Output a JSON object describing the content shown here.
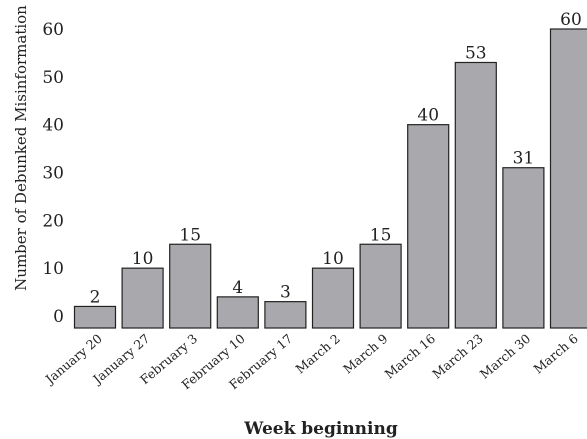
{
  "chart_data": {
    "type": "bar",
    "title": "",
    "xlabel": "Week beginning",
    "ylabel": "Number of Debunked Misinformation",
    "categories": [
      "January 20",
      "January 27",
      "February 3",
      "February 10",
      "February 17",
      "March 2",
      "March 9",
      "March 16",
      "March 23",
      "March 30",
      "March 6"
    ],
    "values": [
      2,
      10,
      15,
      4,
      3,
      10,
      15,
      40,
      53,
      31,
      60
    ],
    "data_labels": [
      "2",
      "10",
      "15",
      "4",
      "3",
      "10",
      "15",
      "40",
      "53",
      "31",
      "60"
    ],
    "yticks": [
      0,
      10,
      20,
      30,
      40,
      50,
      60
    ],
    "ytick_labels": [
      "0",
      "10",
      "20",
      "30",
      "40",
      "50",
      "60"
    ],
    "ylim": [
      0,
      60
    ],
    "grid": false,
    "bar_color": "#a9a9ad",
    "edge_color": "#222222"
  }
}
